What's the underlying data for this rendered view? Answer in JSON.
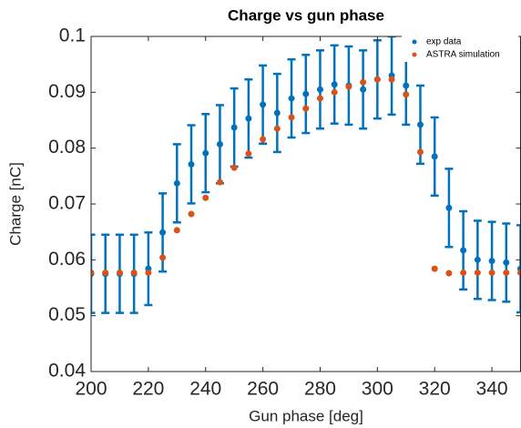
{
  "chart_data": {
    "type": "errorbar-scatter",
    "title": "Charge vs gun phase",
    "xlabel": "Gun phase [deg]",
    "ylabel": "Charge [nC]",
    "x": [
      200,
      205,
      210,
      215,
      220,
      225,
      230,
      235,
      240,
      245,
      250,
      255,
      260,
      265,
      270,
      275,
      280,
      285,
      290,
      295,
      300,
      305,
      310,
      315,
      320,
      325,
      330,
      335,
      340,
      345,
      350
    ],
    "series": [
      {
        "name": "exp data",
        "color": "#0072BD",
        "values": [
          0.0575,
          0.0575,
          0.0575,
          0.0575,
          0.0584,
          0.0649,
          0.0737,
          0.0771,
          0.0791,
          0.0807,
          0.0837,
          0.0853,
          0.0878,
          0.0863,
          0.0889,
          0.0897,
          0.0905,
          0.0914,
          0.0912,
          0.0905,
          0.0923,
          0.093,
          0.0912,
          0.0842,
          0.0785,
          0.0693,
          0.0617,
          0.06,
          0.0598,
          0.0595,
          0.0584
        ],
        "errors": [
          0.007,
          0.007,
          0.007,
          0.007,
          0.0065,
          0.007,
          0.007,
          0.007,
          0.007,
          0.007,
          0.007,
          0.007,
          0.007,
          0.007,
          0.007,
          0.007,
          0.007,
          0.007,
          0.007,
          0.007,
          0.007,
          0.007,
          0.007,
          0.007,
          0.007,
          0.007,
          0.007,
          0.007,
          0.007,
          0.007,
          0.0078
        ]
      },
      {
        "name": "ASTRA simulation",
        "color": "#D95319",
        "values": [
          0.0577,
          0.0577,
          0.0577,
          0.0577,
          0.0577,
          0.0604,
          0.0653,
          0.0682,
          0.0711,
          0.0739,
          0.0765,
          0.079,
          0.0816,
          0.0835,
          0.0855,
          0.0871,
          0.0889,
          0.09,
          0.091,
          0.0918,
          0.0923,
          0.0923,
          0.0896,
          0.0793,
          0.0584,
          0.0576,
          0.0577,
          0.0577,
          0.0577,
          0.0577,
          0.0577
        ]
      }
    ],
    "xlim": [
      200,
      350
    ],
    "ylim": [
      0.04,
      0.1
    ],
    "xticks": [
      200,
      220,
      240,
      260,
      280,
      300,
      320,
      340
    ],
    "yticks": [
      0.04,
      0.05,
      0.06,
      0.07,
      0.08,
      0.09,
      0.1
    ],
    "legend": "upper right"
  }
}
